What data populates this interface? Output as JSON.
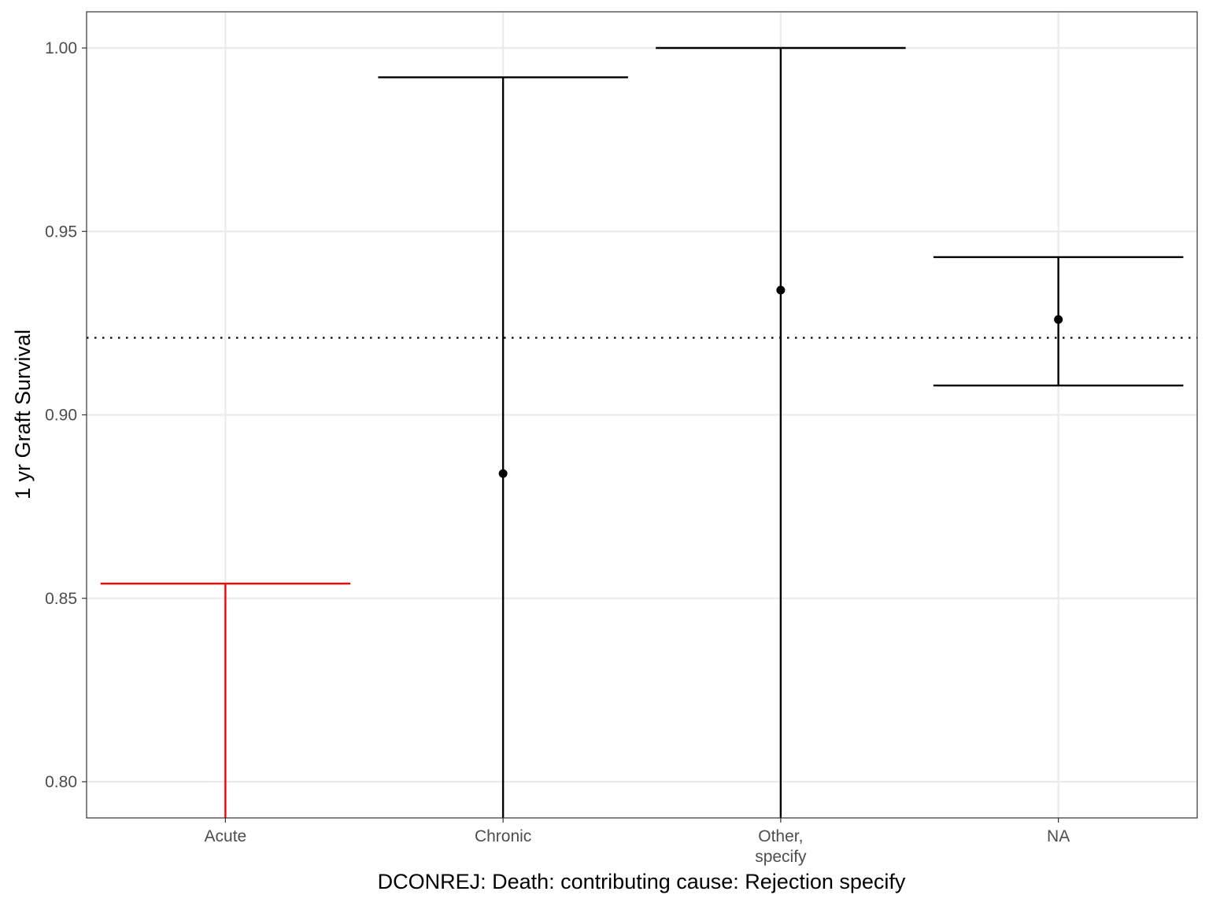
{
  "chart_data": {
    "type": "errorbar",
    "xlabel": "DCONREJ: Death: contributing cause: Rejection specify",
    "ylabel": "1 yr Graft Survival",
    "categories": [
      "Acute",
      "Chronic",
      "Other,\nspecify",
      "NA"
    ],
    "ylim": [
      0.79,
      1.01
    ],
    "yticks": [
      0.8,
      0.85,
      0.9,
      0.95,
      1.0
    ],
    "ytick_labels": [
      "0.80",
      "0.85",
      "0.90",
      "0.95",
      "1.00"
    ],
    "reference_line": 0.921,
    "points": [
      {
        "category": "Acute",
        "estimate": null,
        "lower": null,
        "upper": 0.854,
        "color": "#ff0000"
      },
      {
        "category": "Chronic",
        "estimate": 0.884,
        "lower": null,
        "upper": 0.992,
        "color": "#000000"
      },
      {
        "category": "Other,\nspecify",
        "estimate": 0.934,
        "lower": null,
        "upper": 1.0,
        "color": "#000000"
      },
      {
        "category": "NA",
        "estimate": 0.926,
        "lower": 0.908,
        "upper": 0.943,
        "color": "#000000"
      }
    ],
    "grid": true,
    "legend": "none"
  }
}
